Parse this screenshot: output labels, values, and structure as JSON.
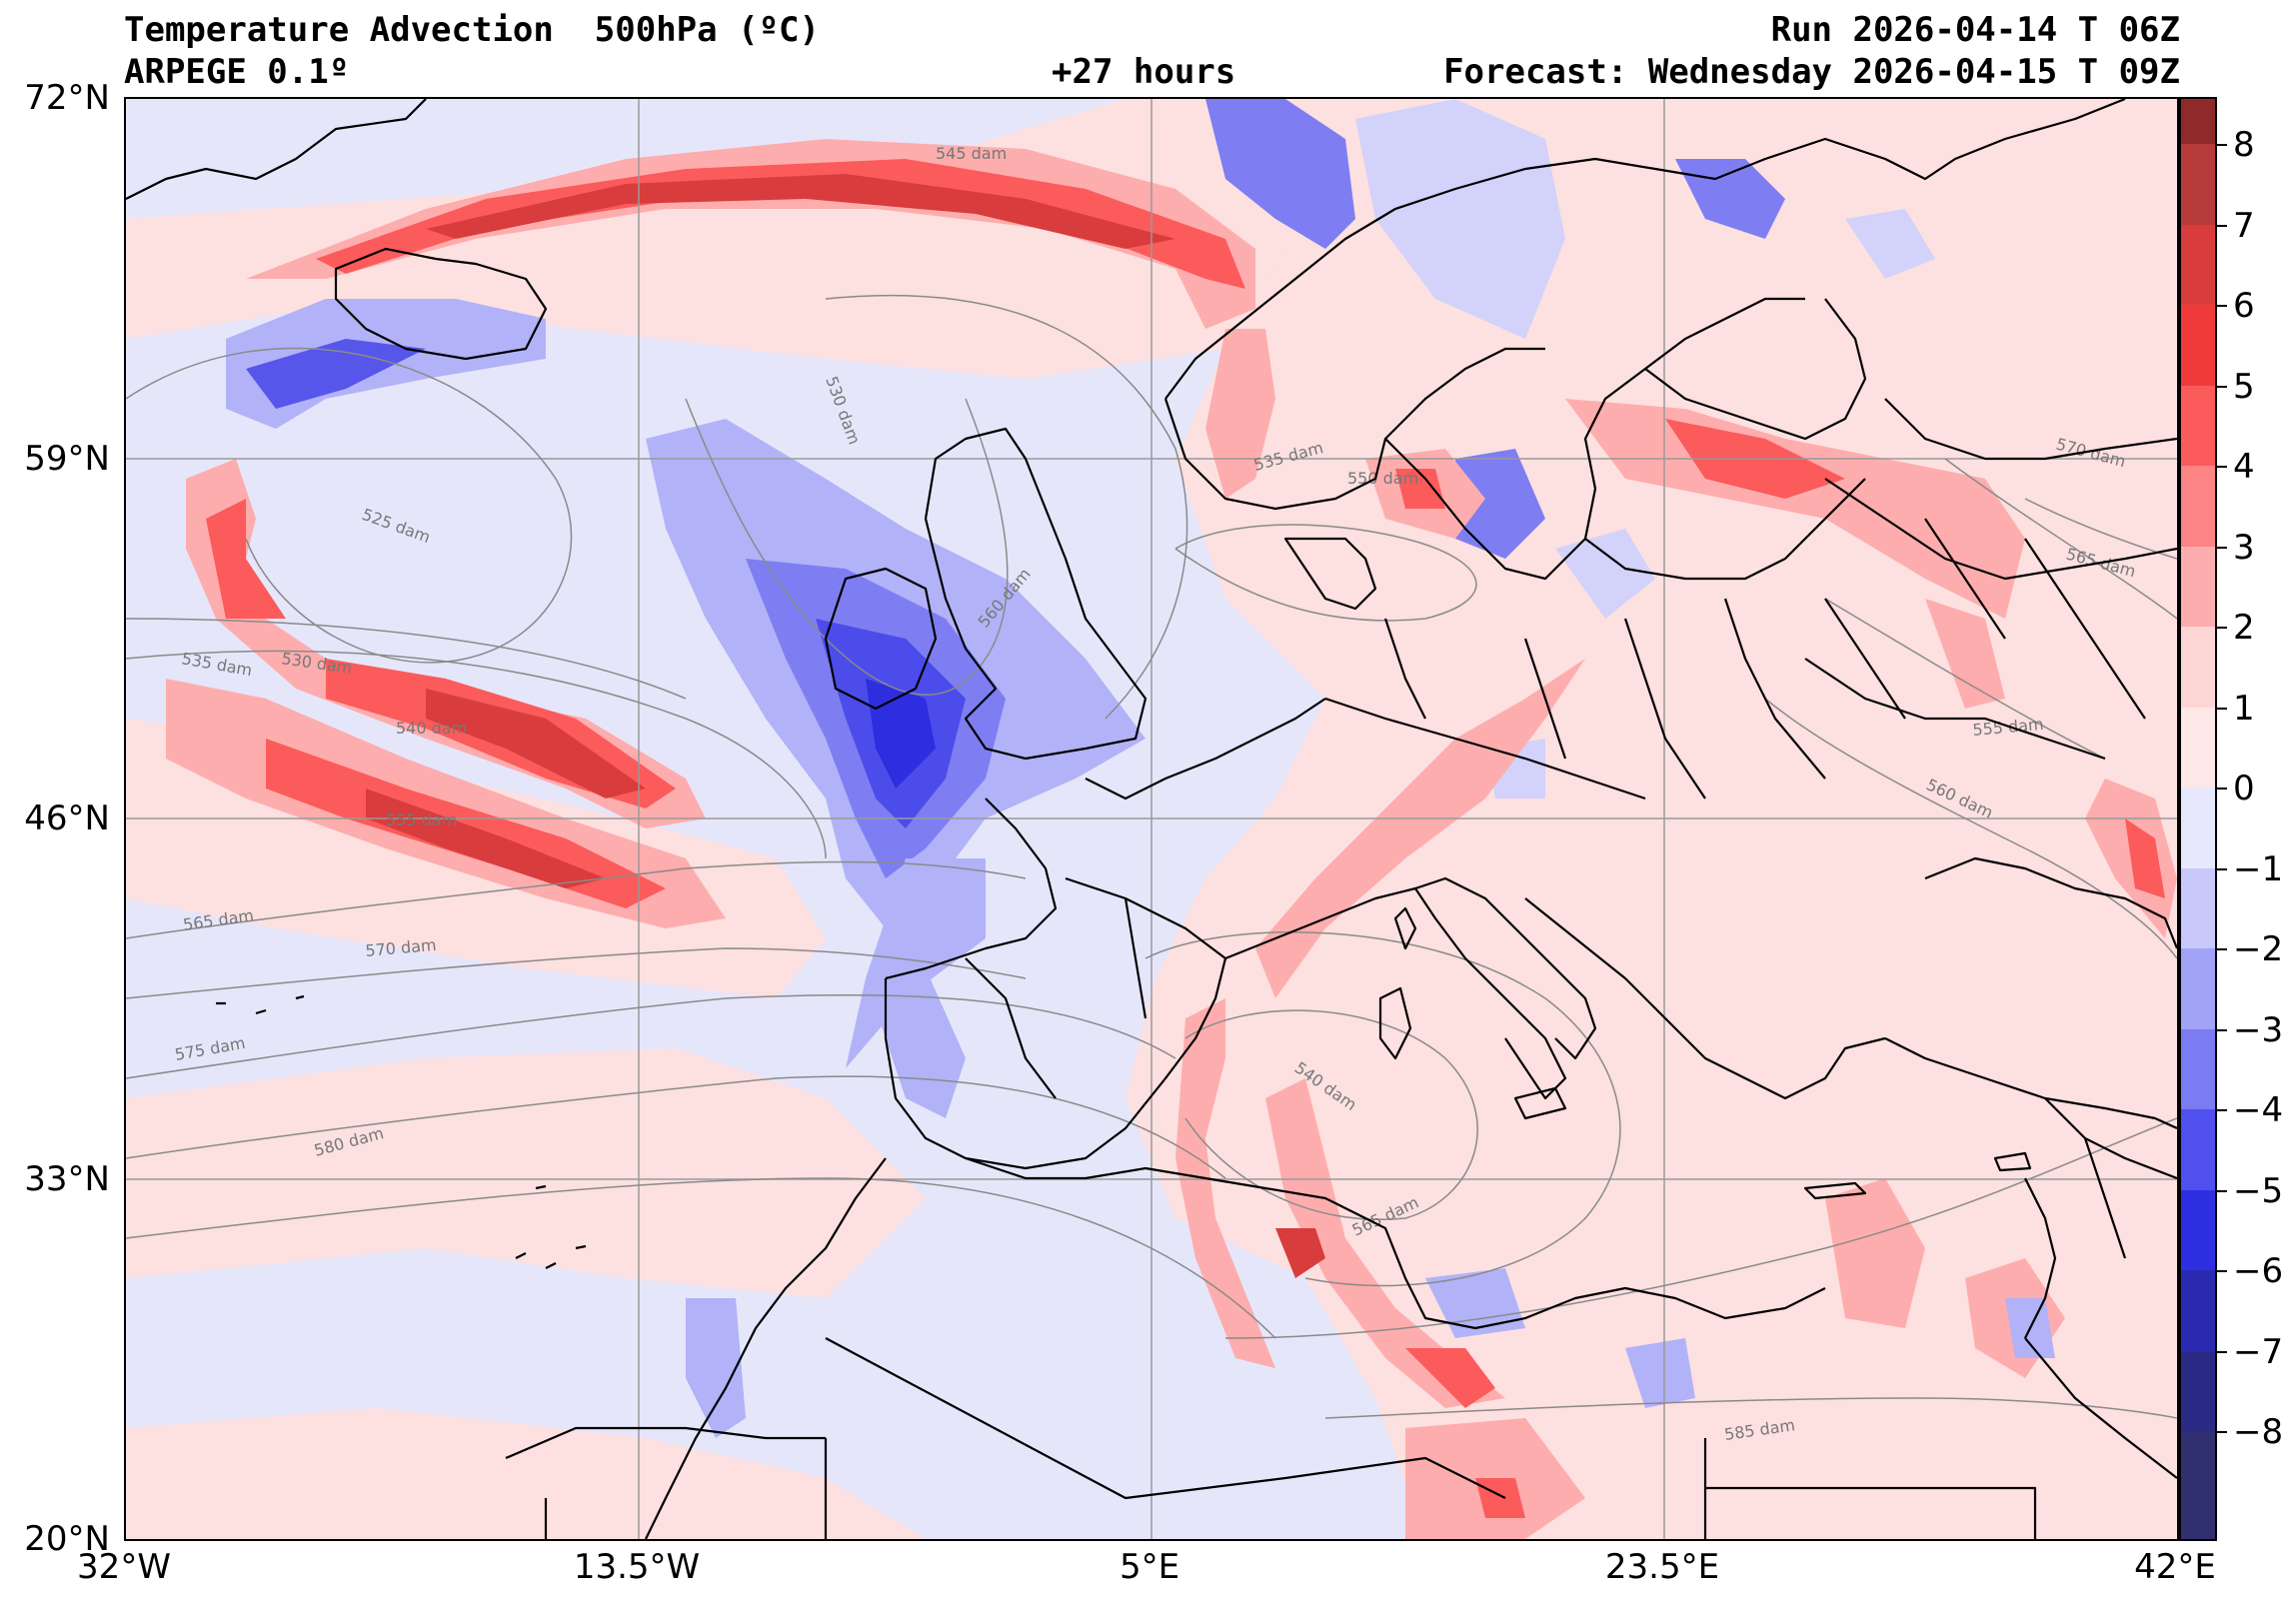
{
  "header": {
    "title": "Temperature Advection  500hPa (ºC)",
    "model": "ARPEGE 0.1º",
    "run": "Run 2026-04-14 T 06Z",
    "lead": "+27 hours",
    "forecast": "Forecast: Wednesday 2026-04-15 T 09Z"
  },
  "axes": {
    "lat_ticks": [
      "72°N",
      "59°N",
      "46°N",
      "33°N",
      "20°N"
    ],
    "lon_ticks": [
      "32°W",
      "13.5°W",
      "5°E",
      "23.5°E",
      "42°E"
    ]
  },
  "colorbar": {
    "labels": [
      "8",
      "7",
      "6",
      "5",
      "4",
      "3",
      "2",
      "1",
      "0",
      "−1",
      "−2",
      "−3",
      "−4",
      "−5",
      "−6",
      "−7",
      "−8"
    ],
    "colors": [
      "#8f2a2a",
      "#b73a3a",
      "#d83c3c",
      "#f03a3a",
      "#fb5b5b",
      "#fc8484",
      "#fdadad",
      "#fdd5d5",
      "#fde7e7",
      "#e8e8fc",
      "#c8c8fa",
      "#a2a2f6",
      "#7b7bf2",
      "#5050ee",
      "#2f2fe2",
      "#2a2ab0",
      "#2a2a85",
      "#303070"
    ]
  },
  "contours": {
    "labels": [
      "545 dam",
      "530 dam",
      "525 dam",
      "535 dam",
      "530 dam",
      "540 dam",
      "555 dam",
      "565 dam",
      "570 dam",
      "575 dam",
      "580 dam",
      "560 dam",
      "535 dam",
      "550 dam",
      "570 dam",
      "565 dam",
      "555 dam",
      "560 dam",
      "540 dam",
      "565 dam",
      "585 dam"
    ]
  },
  "palette": {
    "background_advection": "#e6e6fb",
    "warm_light": "#fde0e0",
    "cold_light": "#d2d2fa",
    "coast": "#000000",
    "grid": "#9a9a9a",
    "contour": "#8a8a8a"
  }
}
